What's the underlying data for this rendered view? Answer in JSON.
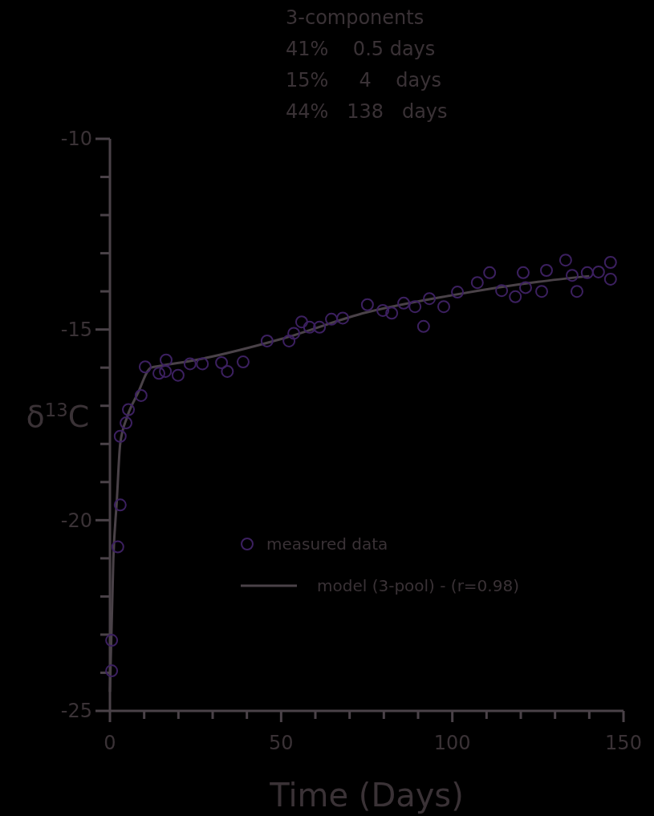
{
  "chart_data": {
    "type": "scatter",
    "xlabel": "Time (Days)",
    "ylabel": "δ$^{13}$C",
    "annotations": [
      "3-components",
      "41%    0.5 days",
      "15%     4    days",
      "44%   138   days"
    ],
    "xlim": [
      0,
      150
    ],
    "ylim": [
      -25,
      -10
    ],
    "xticks": [
      0,
      {
        "value": 10,
        "label": null
      },
      {
        "value": 20,
        "label": null
      },
      {
        "value": 30,
        "label": null
      },
      {
        "value": 40,
        "label": null
      },
      50,
      {
        "value": 60,
        "label": null
      },
      {
        "value": 70,
        "label": null
      },
      {
        "value": 80,
        "label": null
      },
      {
        "value": 90,
        "label": null
      },
      100,
      {
        "value": 110,
        "label": null
      },
      {
        "value": 120,
        "label": null
      },
      {
        "value": 130,
        "label": null
      },
      {
        "value": 140,
        "label": null
      },
      150
    ],
    "yticks": [
      -25,
      {
        "value": -24,
        "label": null
      },
      {
        "value": -23,
        "label": null
      },
      {
        "value": -22,
        "label": null
      },
      {
        "value": -21,
        "label": null
      },
      -20,
      {
        "value": -19,
        "label": null
      },
      {
        "value": -18,
        "label": null
      },
      {
        "value": -17,
        "label": null
      },
      {
        "value": -16,
        "label": null
      },
      -15,
      {
        "value": -14,
        "label": null
      },
      {
        "value": -13,
        "label": null
      },
      {
        "value": -12,
        "label": null
      },
      {
        "value": -11,
        "label": null
      },
      -10
    ],
    "grid": false,
    "legend": "center",
    "series": [
      {
        "name": "measured data",
        "marker": "circle",
        "color": "#3c2060",
        "x": [
          0.5,
          0.5,
          2.3,
          3,
          3,
          4.7,
          5.4,
          9.1,
          10.3,
          14.3,
          16.4,
          16.2,
          19.9,
          23.4,
          27,
          32.6,
          34.3,
          38.9,
          45.9,
          52.3,
          53.7,
          56,
          58.3,
          61.2,
          64.7,
          68,
          75.2,
          79.7,
          82.3,
          85.8,
          89.1,
          91.6,
          93.3,
          97.5,
          101.5,
          107.3,
          110.9,
          114.4,
          118.4,
          120.7,
          121.4,
          126.1,
          127.5,
          133.1,
          135,
          136.4,
          139.4,
          142.7,
          146.2,
          146.2
        ],
        "values": [
          -23.95,
          -23.15,
          -20.7,
          -19.6,
          -17.8,
          -17.45,
          -17.1,
          -16.73,
          -15.98,
          -16.15,
          -15.8,
          -16.1,
          -16.2,
          -15.9,
          -15.9,
          -15.87,
          -16.1,
          -15.85,
          -15.3,
          -15.3,
          -15.1,
          -14.8,
          -14.94,
          -14.94,
          -14.73,
          -14.7,
          -14.35,
          -14.5,
          -14.57,
          -14.31,
          -14.4,
          -14.92,
          -14.19,
          -14.4,
          -14.02,
          -13.77,
          -13.51,
          -13.98,
          -14.14,
          -13.51,
          -13.9,
          -14.0,
          -13.45,
          -13.18,
          -13.58,
          -14.0,
          -13.51,
          -13.49,
          -13.24,
          -13.68
        ]
      },
      {
        "name": "model (3-pool) - (r=0.98)",
        "type": "line",
        "marker": "none",
        "line_style": "solid",
        "color": "#4a4248",
        "x": [
          0,
          1,
          2,
          3,
          5,
          8,
          12,
          15,
          25,
          50,
          75,
          100,
          125,
          140
        ],
        "values": [
          -24.5,
          -21,
          -19.5,
          -18,
          -17.3,
          -16.7,
          -16.0,
          -15.95,
          -15.8,
          -15.25,
          -14.55,
          -14.1,
          -13.75,
          -13.6
        ]
      }
    ]
  }
}
